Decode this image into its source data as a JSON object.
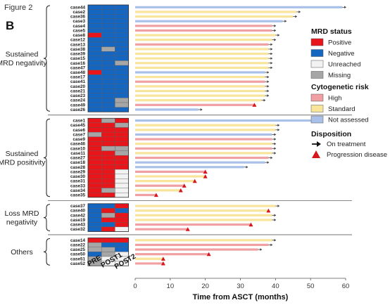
{
  "figure": {
    "label": "Figure 2",
    "panel": "B"
  },
  "colors": {
    "mrd_positive": "#e8161b",
    "mrd_negative": "#1566c0",
    "mrd_unreached": "#f2f2f2",
    "mrd_missing": "#a6a6a6",
    "risk_high": "#f0a0a3",
    "risk_standard": "#f8e49a",
    "risk_not_assessed": "#a9c1e9",
    "progression": "#d6161d",
    "arrow": "#444444"
  },
  "legend": {
    "mrd_title": "MRD status",
    "mrd_items": [
      {
        "label": "Positive",
        "color_key": "mrd_positive"
      },
      {
        "label": "Negative",
        "color_key": "mrd_negative"
      },
      {
        "label": "Unreached",
        "color_key": "mrd_unreached"
      },
      {
        "label": "Missing",
        "color_key": "mrd_missing"
      }
    ],
    "risk_title": "Cytogenetic risk",
    "risk_items": [
      {
        "label": "High",
        "color_key": "risk_high"
      },
      {
        "label": "Standard",
        "color_key": "risk_standard"
      },
      {
        "label": "Not assessed",
        "color_key": "risk_not_assessed"
      }
    ],
    "disposition_title": "Disposition",
    "disposition_items": [
      {
        "label": "On treatment",
        "marker": "arrow"
      },
      {
        "label": "Progression disease",
        "marker": "triangle"
      }
    ]
  },
  "chart_data": {
    "type": "swimmer",
    "xlabel": "Time from ASCT (months)",
    "xlim": [
      0,
      60
    ],
    "xticks": [
      0,
      10,
      20,
      30,
      40,
      50,
      60
    ],
    "grid": false,
    "heatmap_columns": [
      "PRE",
      "POST1",
      "POST2"
    ],
    "groups": [
      {
        "label": "Sustained MRD negativity",
        "lines": [
          "Sustained",
          "MRD negativity"
        ],
        "rows": [
          {
            "case": "case44",
            "mrd": [
              "N",
              "N",
              "N"
            ],
            "risk": "NA",
            "months": 59,
            "end": "arrow"
          },
          {
            "case": "case2",
            "mrd": [
              "N",
              "N",
              "N"
            ],
            "risk": "S",
            "months": 46,
            "end": "arrow"
          },
          {
            "case": "case36",
            "mrd": [
              "N",
              "N",
              "N"
            ],
            "risk": "S",
            "months": 45,
            "end": "arrow"
          },
          {
            "case": "case3",
            "mrd": [
              "N",
              "N",
              "N"
            ],
            "risk": "NA",
            "months": 42,
            "end": "arrow"
          },
          {
            "case": "case4",
            "mrd": [
              "N",
              "N",
              "N"
            ],
            "risk": "H",
            "months": 39,
            "end": "arrow"
          },
          {
            "case": "case5",
            "mrd": [
              "N",
              "N",
              "N"
            ],
            "risk": "H",
            "months": 39,
            "end": "arrow"
          },
          {
            "case": "case8",
            "mrd": [
              "P",
              "N",
              "N"
            ],
            "risk": "S",
            "months": 40,
            "end": "arrow"
          },
          {
            "case": "case12",
            "mrd": [
              "N",
              "N",
              "N"
            ],
            "risk": "S",
            "months": 39,
            "end": "arrow"
          },
          {
            "case": "case13",
            "mrd": [
              "N",
              "N",
              "N"
            ],
            "risk": "H",
            "months": 38,
            "end": "arrow"
          },
          {
            "case": "case38",
            "mrd": [
              "N",
              "M",
              "N"
            ],
            "risk": "S",
            "months": 38,
            "end": "arrow"
          },
          {
            "case": "case39",
            "mrd": [
              "N",
              "N",
              "N"
            ],
            "risk": "S",
            "months": 38,
            "end": "arrow"
          },
          {
            "case": "case15",
            "mrd": [
              "N",
              "N",
              "N"
            ],
            "risk": "S",
            "months": 38,
            "end": "arrow"
          },
          {
            "case": "case16",
            "mrd": [
              "N",
              "N",
              "M"
            ],
            "risk": "S",
            "months": 38,
            "end": "arrow"
          },
          {
            "case": "case47",
            "mrd": [
              "N",
              "N",
              "N"
            ],
            "risk": "S",
            "months": 38,
            "end": "arrow"
          },
          {
            "case": "case48",
            "mrd": [
              "P",
              "N",
              "N"
            ],
            "risk": "NA",
            "months": 37,
            "end": "arrow"
          },
          {
            "case": "case17",
            "mrd": [
              "N",
              "N",
              "N"
            ],
            "risk": "S",
            "months": 37,
            "end": "arrow"
          },
          {
            "case": "case41",
            "mrd": [
              "N",
              "N",
              "N"
            ],
            "risk": "H",
            "months": 37,
            "end": "arrow"
          },
          {
            "case": "case20",
            "mrd": [
              "N",
              "N",
              "N"
            ],
            "risk": "S",
            "months": 37,
            "end": "arrow"
          },
          {
            "case": "case21",
            "mrd": [
              "N",
              "N",
              "N"
            ],
            "risk": "S",
            "months": 37,
            "end": "arrow"
          },
          {
            "case": "case23",
            "mrd": [
              "N",
              "N",
              "N"
            ],
            "risk": "S",
            "months": 37,
            "end": "arrow"
          },
          {
            "case": "case24",
            "mrd": [
              "N",
              "N",
              "M"
            ],
            "risk": "S",
            "months": 36,
            "end": "arrow"
          },
          {
            "case": "case49",
            "mrd": [
              "N",
              "N",
              "M"
            ],
            "risk": "H",
            "months": 34,
            "end": "triangle"
          },
          {
            "case": "case26",
            "mrd": [
              "N",
              "N",
              "N"
            ],
            "risk": "NA",
            "months": 18,
            "end": "arrow"
          }
        ]
      },
      {
        "label": "Sustained MRD positivity",
        "lines": [
          "Sustained",
          "MRD positivity"
        ],
        "rows": [
          {
            "case": "case1",
            "mrd": [
              "P",
              "M",
              "P"
            ],
            "risk": "NA",
            "months": 51,
            "end": "arrow"
          },
          {
            "case": "case45",
            "mrd": [
              "P",
              "P",
              "M"
            ],
            "risk": "S",
            "months": 40,
            "end": "arrow"
          },
          {
            "case": "case6",
            "mrd": [
              "P",
              "P",
              "P"
            ],
            "risk": "S",
            "months": 40,
            "end": "arrow"
          },
          {
            "case": "case7",
            "mrd": [
              "M",
              "P",
              "P"
            ],
            "risk": "NA",
            "months": 39,
            "end": "arrow"
          },
          {
            "case": "case9",
            "mrd": [
              "P",
              "P",
              "P"
            ],
            "risk": "H",
            "months": 39,
            "end": "arrow"
          },
          {
            "case": "case46",
            "mrd": [
              "P",
              "P",
              "P"
            ],
            "risk": "S",
            "months": 39,
            "end": "arrow"
          },
          {
            "case": "case10",
            "mrd": [
              "P",
              "M",
              "M"
            ],
            "risk": "H",
            "months": 39,
            "end": "arrow"
          },
          {
            "case": "case11",
            "mrd": [
              "P",
              "P",
              "M"
            ],
            "risk": "S",
            "months": 39,
            "end": "arrow"
          },
          {
            "case": "case27",
            "mrd": [
              "P",
              "P",
              "P"
            ],
            "risk": "H",
            "months": 38,
            "end": "arrow"
          },
          {
            "case": "case18",
            "mrd": [
              "P",
              "P",
              "P"
            ],
            "risk": "NA",
            "months": 37,
            "end": "arrow"
          },
          {
            "case": "case28",
            "mrd": [
              "P",
              "P",
              "P"
            ],
            "risk": "NA",
            "months": 31,
            "end": "arrow"
          },
          {
            "case": "case29",
            "mrd": [
              "P",
              "P",
              "U"
            ],
            "risk": "H",
            "months": 20,
            "end": "triangle"
          },
          {
            "case": "case30",
            "mrd": [
              "P",
              "P",
              "U"
            ],
            "risk": "S",
            "months": 20,
            "end": "triangle"
          },
          {
            "case": "case31",
            "mrd": [
              "P",
              "P",
              "U"
            ],
            "risk": "S",
            "months": 17,
            "end": "triangle"
          },
          {
            "case": "case33",
            "mrd": [
              "P",
              "P",
              "U"
            ],
            "risk": "H",
            "months": 14,
            "end": "triangle"
          },
          {
            "case": "case34",
            "mrd": [
              "P",
              "M",
              "U"
            ],
            "risk": "S",
            "months": 13,
            "end": "triangle"
          },
          {
            "case": "case35",
            "mrd": [
              "P",
              "P",
              "U"
            ],
            "risk": "H",
            "months": 6,
            "end": "triangle"
          }
        ]
      },
      {
        "label": "Loss MRD negativity",
        "lines": [
          "Loss MRD",
          "negativity"
        ],
        "rows": [
          {
            "case": "case37",
            "mrd": [
              "N",
              "N",
              "P"
            ],
            "risk": "S",
            "months": 40,
            "end": "arrow"
          },
          {
            "case": "case40",
            "mrd": [
              "N",
              "P",
              "N"
            ],
            "risk": "S",
            "months": 38,
            "end": "triangle"
          },
          {
            "case": "case42",
            "mrd": [
              "N",
              "M",
              "P"
            ],
            "risk": "S",
            "months": 39,
            "end": "arrow"
          },
          {
            "case": "case19",
            "mrd": [
              "N",
              "P",
              "P"
            ],
            "risk": "S",
            "months": 39,
            "end": "arrow"
          },
          {
            "case": "case43",
            "mrd": [
              "N",
              "N",
              "P"
            ],
            "risk": "H",
            "months": 33,
            "end": "triangle"
          },
          {
            "case": "case32",
            "mrd": [
              "N",
              "P",
              "U"
            ],
            "risk": "H",
            "months": 15,
            "end": "triangle"
          }
        ]
      },
      {
        "label": "Others",
        "lines": [
          "Others"
        ],
        "rows": [
          {
            "case": "case14",
            "mrd": [
              "P",
              "P",
              "P"
            ],
            "risk": "S",
            "months": 39,
            "end": "arrow"
          },
          {
            "case": "case22",
            "mrd": [
              "M",
              "N",
              "N"
            ],
            "risk": "H",
            "months": 38,
            "end": "arrow"
          },
          {
            "case": "case25",
            "mrd": [
              "M",
              "M",
              "N"
            ],
            "risk": "H",
            "months": 35,
            "end": "arrow"
          },
          {
            "case": "case50",
            "mrd": [
              "N",
              "M",
              "U"
            ],
            "risk": "H",
            "months": 21,
            "end": "triangle"
          },
          {
            "case": "case51",
            "mrd": [
              "M",
              "U",
              "U"
            ],
            "risk": "S",
            "months": 8,
            "end": "triangle"
          },
          {
            "case": "case52",
            "mrd": [
              "M",
              "U",
              "U"
            ],
            "risk": "H",
            "months": 8,
            "end": "triangle"
          }
        ]
      }
    ]
  }
}
